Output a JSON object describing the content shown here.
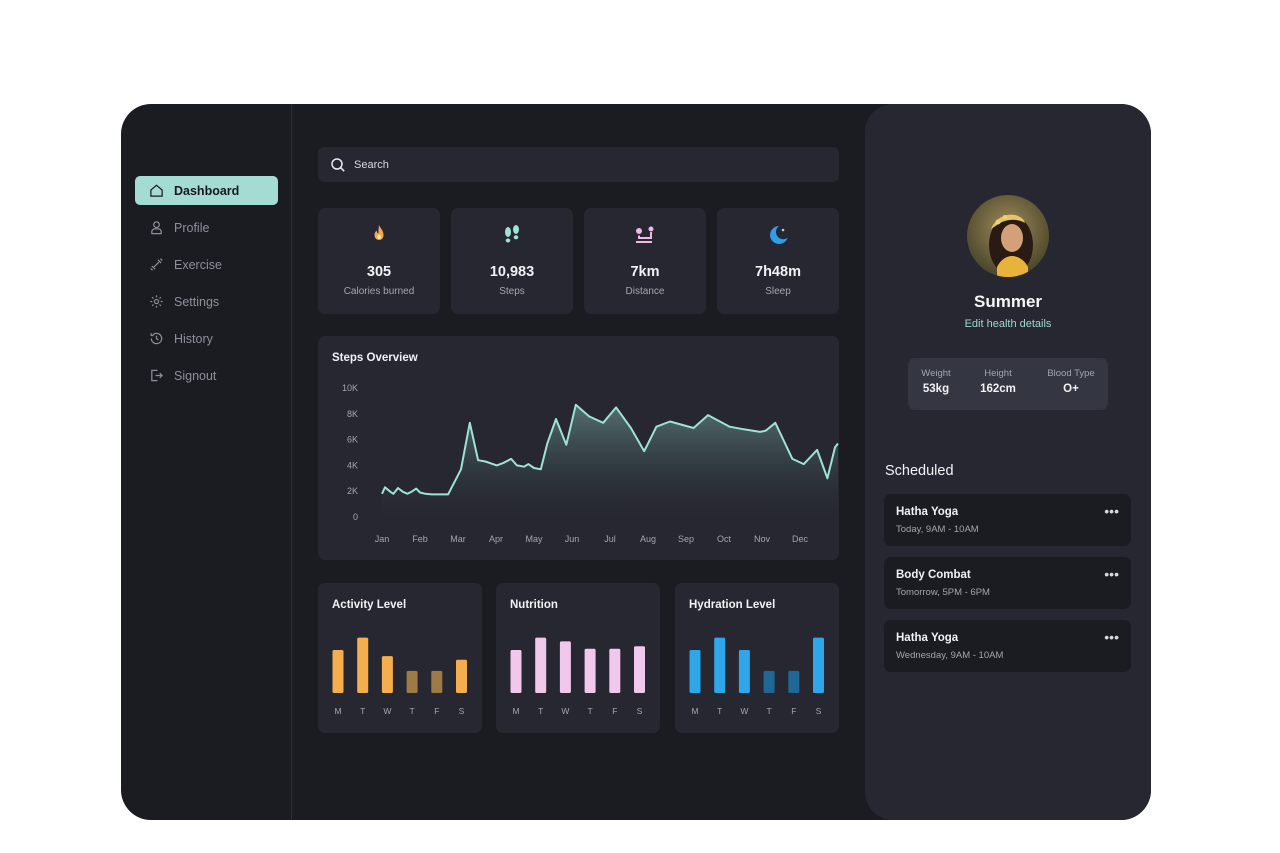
{
  "sidebar": {
    "items": [
      {
        "label": "Dashboard",
        "icon": "home-icon",
        "active": true
      },
      {
        "label": "Profile",
        "icon": "user-icon"
      },
      {
        "label": "Exercise",
        "icon": "dumbbell-icon"
      },
      {
        "label": "Settings",
        "icon": "gear-icon"
      },
      {
        "label": "History",
        "icon": "history-icon"
      },
      {
        "label": "Signout",
        "icon": "signout-icon"
      }
    ]
  },
  "search": {
    "placeholder": "Search"
  },
  "stats": [
    {
      "value": "305",
      "label": "Calories burned",
      "icon": "flame-icon",
      "color": "#f5a94a"
    },
    {
      "value": "10,983",
      "label": "Steps",
      "icon": "footprints-icon",
      "color": "#9ee3d6"
    },
    {
      "value": "7km",
      "label": "Distance",
      "icon": "route-icon",
      "color": "#f2b7e6"
    },
    {
      "value": "7h48m",
      "label": "Sleep",
      "icon": "moon-icon",
      "color": "#2e9fe6"
    }
  ],
  "chart_data": [
    {
      "type": "area",
      "title": "Steps Overview",
      "categories": [
        "Jan",
        "Feb",
        "Mar",
        "Apr",
        "May",
        "Jun",
        "Jul",
        "Aug",
        "Sep",
        "Oct",
        "Nov",
        "Dec"
      ],
      "y_ticks": [
        "10K",
        "8K",
        "6K",
        "4K",
        "2K",
        "0"
      ],
      "ylim": [
        0,
        10000
      ],
      "series": [
        {
          "color": "#9ee3d6",
          "x": [
            0,
            0.08,
            0.22,
            0.3,
            0.42,
            0.55,
            0.67,
            0.8,
            0.9,
            1,
            1.14,
            1.31,
            1.52,
            1.74,
            2.08,
            2.31,
            2.53,
            2.72,
            3.02,
            3.2,
            3.4,
            3.55,
            3.74,
            3.85,
            4.0,
            4.18,
            4.35,
            4.58,
            4.85,
            5.1,
            5.45,
            5.82,
            6.16,
            6.55,
            6.9,
            7.22,
            7.58,
            8.2,
            8.58,
            9.15,
            9.52,
            9.95,
            10.1,
            10.35,
            10.8,
            11.1,
            11.45,
            11.72,
            11.92,
            12.0
          ],
          "values": [
            1800,
            2300,
            1950,
            1800,
            2250,
            1950,
            1800,
            2000,
            2200,
            1900,
            1800,
            1750,
            1750,
            1750,
            3700,
            7300,
            4400,
            4300,
            4000,
            4200,
            4500,
            4000,
            3900,
            4100,
            3800,
            3700,
            5700,
            7600,
            5600,
            8700,
            7800,
            7300,
            8500,
            6900,
            5100,
            7000,
            7400,
            6900,
            7900,
            7000,
            6800,
            6600,
            6700,
            7300,
            4500,
            4100,
            5200,
            3000,
            5400,
            5700
          ]
        }
      ],
      "grid": false,
      "legend": false
    },
    {
      "type": "bar",
      "title": "Activity Level",
      "categories": [
        "M",
        "T",
        "W",
        "T",
        "F",
        "S"
      ],
      "values": [
        3.5,
        4.5,
        3.0,
        1.8,
        1.8,
        2.7
      ],
      "colors": [
        "#f5ae4e",
        "#f5ae4e",
        "#f5ae4e",
        "#9e7a47",
        "#9e7a47",
        "#f5ae4e"
      ]
    },
    {
      "type": "bar",
      "title": "Nutrition",
      "categories": [
        "M",
        "T",
        "W",
        "T",
        "F",
        "S"
      ],
      "values": [
        3.5,
        4.5,
        4.2,
        3.6,
        3.6,
        3.8
      ],
      "colors": [
        "#f2c7ec",
        "#f2c7ec",
        "#f2c7ec",
        "#f2c7ec",
        "#f2c7ec",
        "#f2c7ec"
      ]
    },
    {
      "type": "bar",
      "title": "Hydration Level",
      "categories": [
        "M",
        "T",
        "W",
        "T",
        "F",
        "S"
      ],
      "values": [
        3.5,
        4.5,
        3.5,
        1.8,
        1.8,
        4.5
      ],
      "colors": [
        "#2ea6e8",
        "#2ea6e8",
        "#2ea6e8",
        "#1f6895",
        "#1f6895",
        "#2ea6e8"
      ]
    }
  ],
  "profile": {
    "name": "Summer",
    "edit_link": "Edit health details",
    "metrics": [
      {
        "label": "Weight",
        "value": "53kg"
      },
      {
        "label": "Height",
        "value": "162cm"
      },
      {
        "label": "Blood Type",
        "value": "O+"
      }
    ]
  },
  "scheduled": {
    "title": "Scheduled",
    "more_icon": "more-dots-icon",
    "items": [
      {
        "name": "Hatha Yoga",
        "time": "Today, 9AM - 10AM"
      },
      {
        "name": "Body Combat",
        "time": "Tomorrow, 5PM - 6PM"
      },
      {
        "name": "Hatha Yoga",
        "time": "Wednesday, 9AM - 10AM"
      }
    ]
  },
  "colors": {
    "accent": "#a4dcd3",
    "background": "#1b1b22",
    "card": "#262731"
  }
}
